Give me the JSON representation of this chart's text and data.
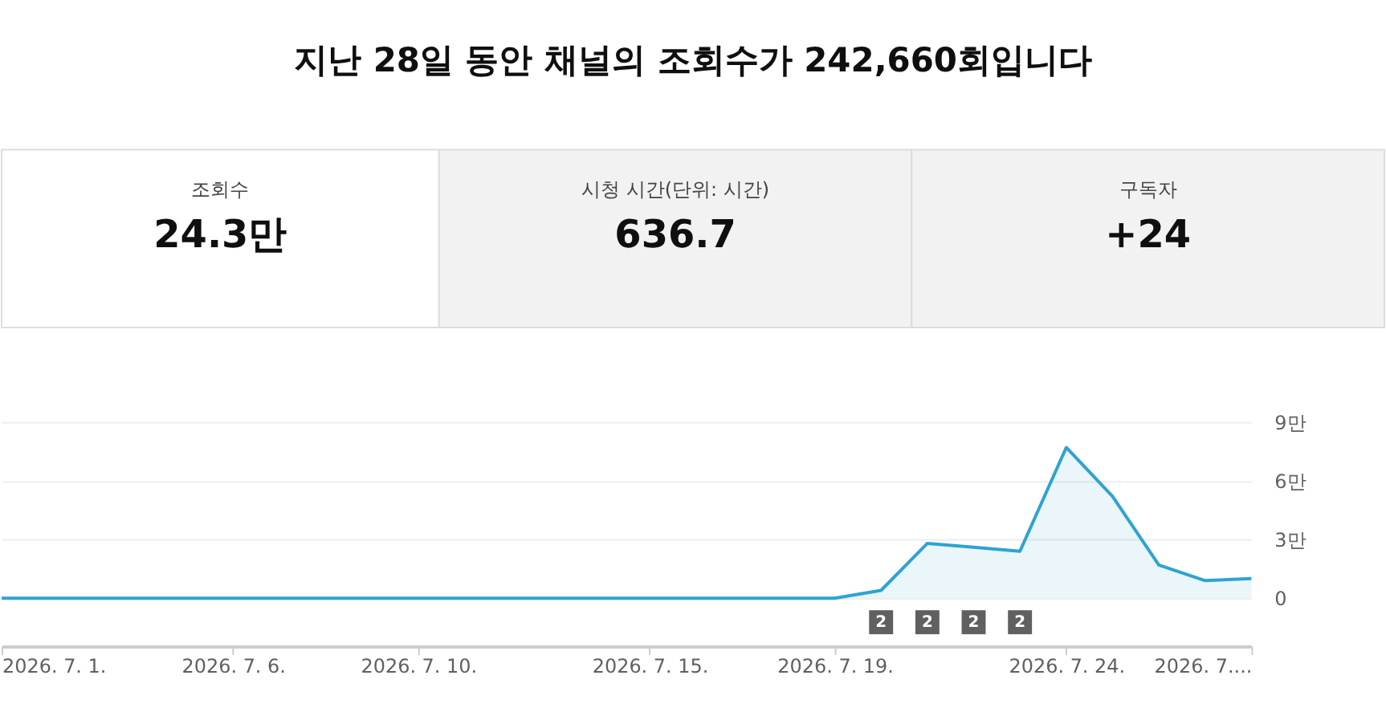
{
  "chart_data": [
    {
      "type": "other",
      "title": "지난 28일 동안 채널의 조회수가 242,660회입니다",
      "annotations": [
        "조회수",
        "24.3만",
        "시청 시간(단위: 시간)",
        "636.7",
        "구독자",
        "+24"
      ]
    },
    {
      "type": "area",
      "x": [
        "2026-07-01",
        "2026-07-02",
        "2026-07-03",
        "2026-07-04",
        "2026-07-05",
        "2026-07-06",
        "2026-07-07",
        "2026-07-08",
        "2026-07-09",
        "2026-07-10",
        "2026-07-11",
        "2026-07-12",
        "2026-07-13",
        "2026-07-14",
        "2026-07-15",
        "2026-07-16",
        "2026-07-17",
        "2026-07-18",
        "2026-07-19",
        "2026-07-20",
        "2026-07-21",
        "2026-07-22",
        "2026-07-23",
        "2026-07-24",
        "2026-07-25",
        "2026-07-26",
        "2026-07-27",
        "2026-07-28"
      ],
      "series": [
        {
          "color": "#2ea3d2",
          "values": [
            0,
            0,
            0,
            0,
            0,
            0,
            0,
            0,
            0,
            0,
            0,
            0,
            0,
            0,
            0,
            0,
            0,
            0,
            0,
            0.4,
            2.8,
            2.6,
            2.4,
            7.7,
            5.2,
            1.7,
            0.9,
            1.0
          ]
        }
      ],
      "xlim": [
        "2026-07-01",
        "2026-07-28"
      ],
      "xticks": [
        {
          "value": "2026-07-01",
          "label": "2026. 7. 1."
        },
        {
          "value": "2026-07-06",
          "label": "2026. 7. 6."
        },
        {
          "value": "2026-07-10",
          "label": "2026. 7. 10."
        },
        {
          "value": "2026-07-15",
          "label": "2026. 7. 15."
        },
        {
          "value": "2026-07-19",
          "label": "2026. 7. 19."
        },
        {
          "value": "2026-07-24",
          "label": "2026. 7. 24."
        },
        {
          "value": "2026-07-28",
          "label": "2026. 7...."
        }
      ],
      "ylim": [
        0,
        9
      ],
      "yticks": [
        0,
        {
          "value": 3,
          "label": "3만"
        },
        {
          "value": 6,
          "label": "6만"
        },
        {
          "value": 9,
          "label": "9만"
        }
      ],
      "grid": "y",
      "annotations": [
        "2",
        "2",
        "2",
        "2"
      ]
    }
  ]
}
